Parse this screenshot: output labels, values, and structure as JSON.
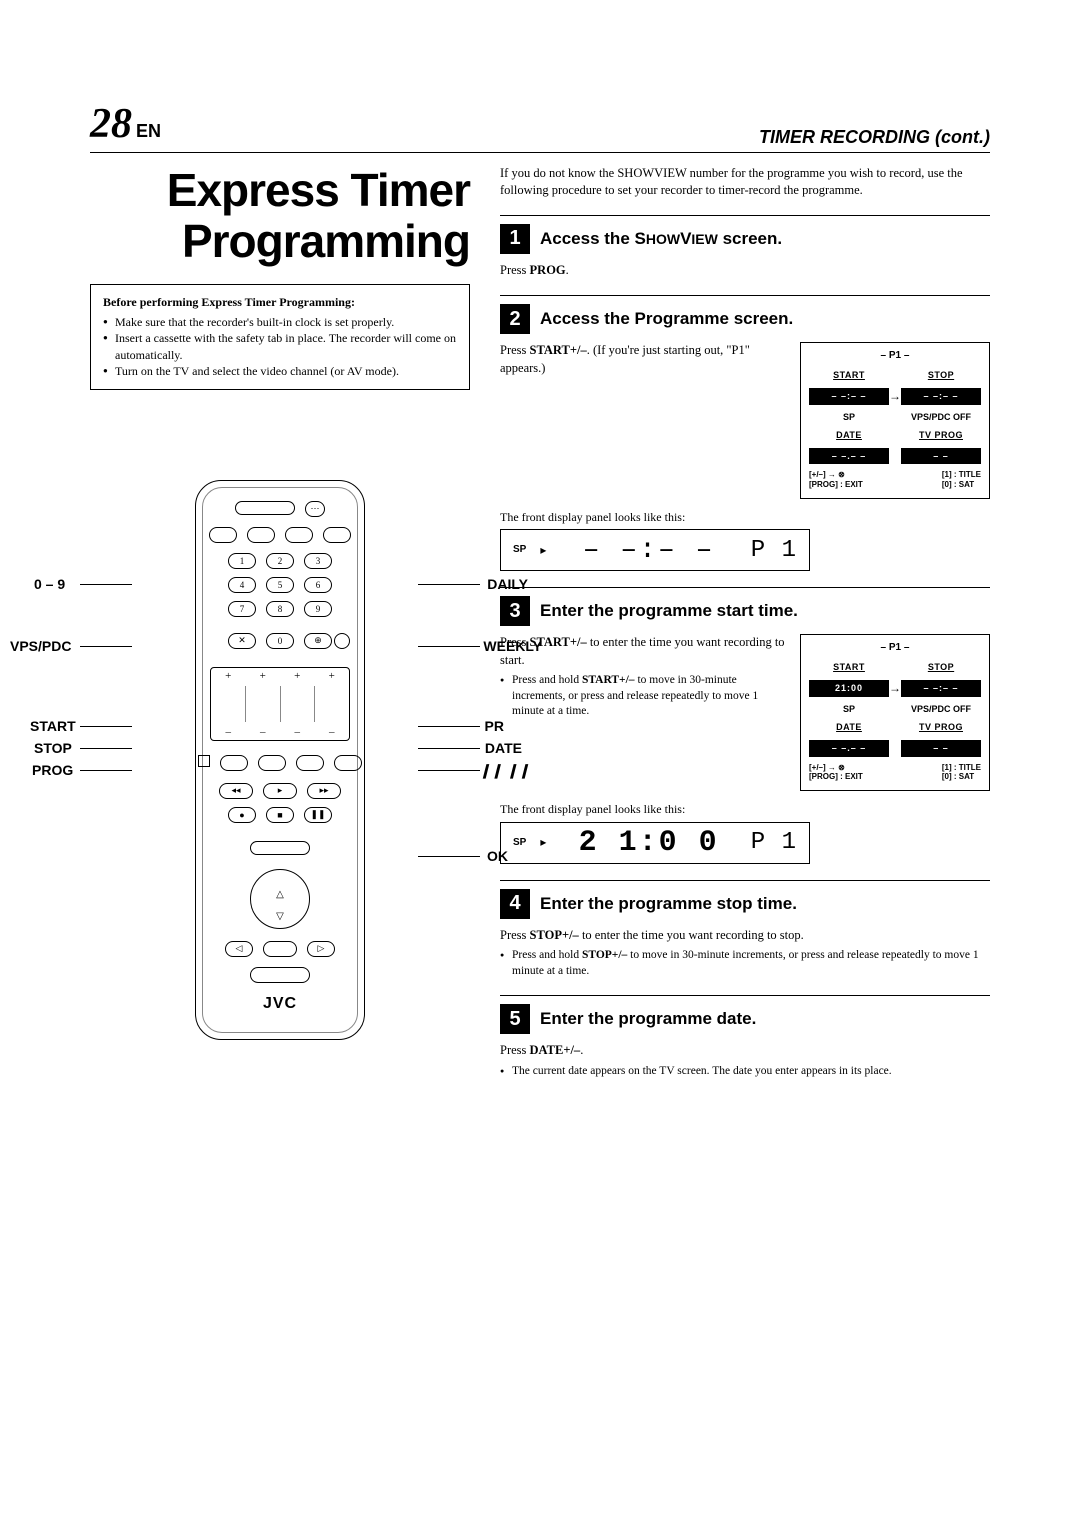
{
  "header": {
    "page_number": "28",
    "lang": "EN",
    "section": "TIMER RECORDING (cont.)"
  },
  "title": "Express Timer Programming",
  "prep": {
    "heading": "Before performing Express Timer Programming:",
    "items": [
      "Make sure that the recorder's built-in clock is set properly.",
      "Insert a cassette with the safety tab in place. The recorder will come on automatically.",
      "Turn on the TV and select the video channel (or AV mode)."
    ]
  },
  "intro": "If you do not know the SHOWVIEW number for the programme you wish to record, use the following procedure to set your recorder to timer-record the programme.",
  "steps": [
    {
      "num": "1",
      "title": "Access the SHOWVIEW screen.",
      "body": "Press <b>PROG</b>."
    },
    {
      "num": "2",
      "title": "Access the Programme screen.",
      "body": "Press <b>START+/–</b>. (If you're just starting out, \"P1\" appears.)",
      "osd": {
        "p": "– P1 –",
        "start": "– –:– –",
        "stop": "– –:– –",
        "start_hl": false,
        "sp": "SP",
        "vps": "VPS/PDC OFF",
        "date": "– –.– –",
        "tvprog": "– –"
      },
      "fd": {
        "sp": "SP",
        "time": "– –:– –",
        "seg": "P 1"
      }
    },
    {
      "num": "3",
      "title": "Enter the programme start time.",
      "body": "Press <b>START+/–</b> to enter the time you want recording to start.",
      "bullets": [
        "Press and hold <b>START+/–</b> to move in 30-minute increments, or press and release repeatedly to move 1 minute at a time."
      ],
      "osd": {
        "p": "– P1 –",
        "start": "21:00",
        "stop": "– –:– –",
        "start_hl": true,
        "sp": "SP",
        "vps": "VPS/PDC OFF",
        "date": "– –.– –",
        "tvprog": "– –"
      },
      "fd": {
        "sp": "SP",
        "time": "2 1:0 0",
        "seg": "P 1"
      }
    },
    {
      "num": "4",
      "title": "Enter the programme stop time.",
      "body": "Press <b>STOP+/–</b> to enter the time you want recording to stop.",
      "bullets": [
        "Press and hold <b>STOP+/–</b> to move in 30-minute increments, or press and release repeatedly to move 1 minute at a time."
      ]
    },
    {
      "num": "5",
      "title": "Enter the programme date.",
      "body": "Press <b>DATE+/–</b>.",
      "bullets": [
        "The current date appears on the TV screen. The date you enter appears in its place."
      ]
    }
  ],
  "remote": {
    "labels_left": [
      "0 – 9",
      "VPS/PDC",
      "START",
      "STOP",
      "PROG"
    ],
    "labels_right": [
      "DAILY",
      "WEEKLY",
      "PR",
      "DATE",
      "",
      "OK"
    ],
    "pause_icon": "❙❙ ❙❙",
    "brand": "JVC",
    "keypad": [
      [
        "1",
        "2",
        "3"
      ],
      [
        "4",
        "5",
        "6"
      ],
      [
        "7",
        "8",
        "9"
      ],
      [
        "✕",
        "0",
        "⊕"
      ]
    ]
  },
  "front_label": "The front display panel looks like this:",
  "osd_footer": {
    "left1": "[+/–] → ⊗",
    "left2": "[PROG] : EXIT",
    "right1": "[1] : TITLE",
    "right2": "[0] : SAT"
  }
}
